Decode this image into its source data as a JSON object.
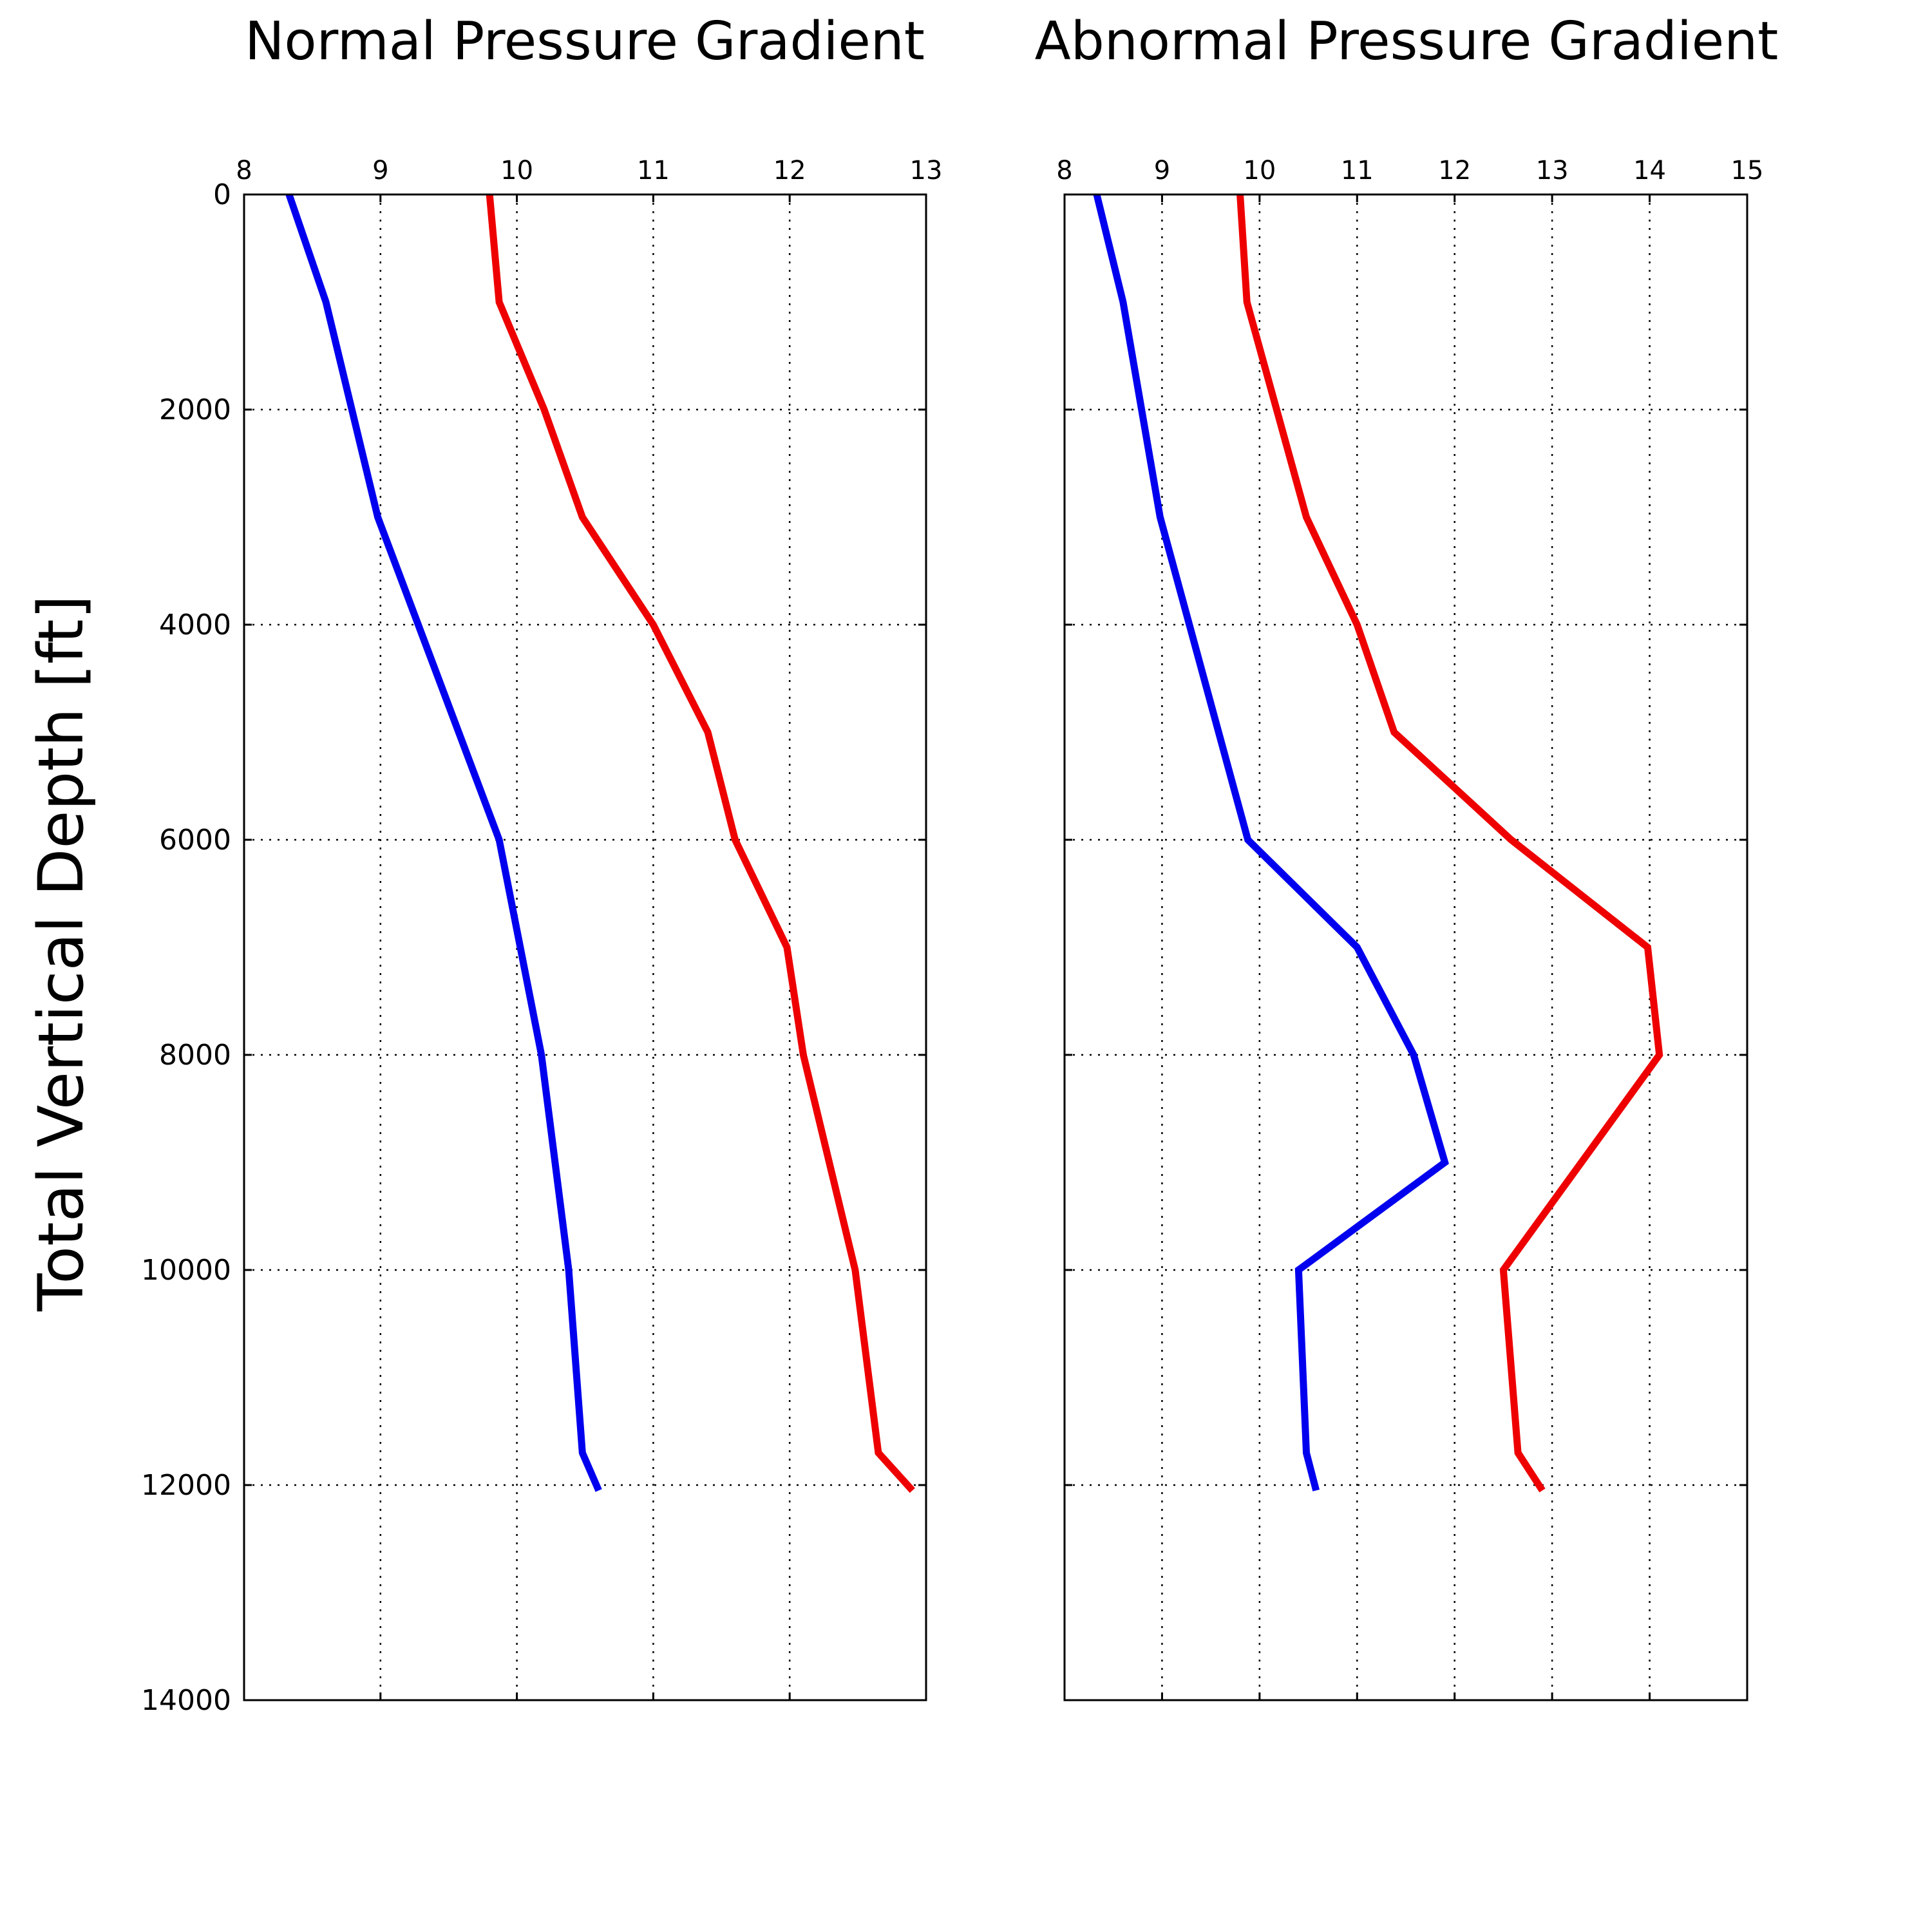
{
  "ylabel": "Total Vertical Depth [ft]",
  "colors": {
    "blue_series": "#0000ee",
    "red_series": "#ee0000"
  },
  "chart_data": [
    {
      "type": "line",
      "title": "Normal Pressure Gradient",
      "xlabel": "",
      "ylabel": "Total Vertical Depth [ft]",
      "xlim": [
        8,
        13
      ],
      "ylim": [
        0,
        14000
      ],
      "y_inverted": true,
      "x_axis_position": "top",
      "grid": true,
      "xticks": [
        "8",
        "9",
        "10",
        "11",
        "12",
        "13"
      ],
      "yticks": [
        "0",
        "2000",
        "4000",
        "6000",
        "8000",
        "10000",
        "12000",
        "14000"
      ],
      "series": [
        {
          "color": "blue",
          "x": [
            8.33,
            8.6,
            8.98,
            9.87,
            10.18,
            10.38,
            10.48,
            10.6
          ],
          "y": [
            0,
            1000,
            3000,
            6000,
            8000,
            10000,
            11700,
            12050
          ]
        },
        {
          "color": "red",
          "x": [
            9.8,
            9.87,
            10.2,
            10.48,
            11.0,
            11.4,
            11.6,
            11.98,
            12.1,
            12.48,
            12.65,
            12.9
          ],
          "y": [
            0,
            1000,
            2000,
            3000,
            4000,
            5000,
            6000,
            7000,
            8000,
            10000,
            11700,
            12050
          ]
        }
      ]
    },
    {
      "type": "line",
      "title": "Abnormal Pressure Gradient",
      "xlabel": "",
      "ylabel": "",
      "xlim": [
        8,
        15
      ],
      "ylim": [
        0,
        14000
      ],
      "y_inverted": true,
      "x_axis_position": "top",
      "grid": true,
      "xticks": [
        "8",
        "9",
        "10",
        "11",
        "12",
        "13",
        "14",
        "15"
      ],
      "yticks": [],
      "series": [
        {
          "color": "blue",
          "x": [
            8.33,
            8.6,
            8.98,
            9.88,
            11.0,
            11.58,
            11.9,
            10.4,
            10.48,
            10.58
          ],
          "y": [
            0,
            1000,
            3000,
            6000,
            7000,
            8000,
            9000,
            10000,
            11700,
            12050
          ]
        },
        {
          "color": "red",
          "x": [
            9.8,
            9.87,
            10.48,
            11.0,
            11.38,
            12.58,
            13.98,
            14.1,
            12.5,
            12.65,
            12.9
          ],
          "y": [
            0,
            1000,
            3000,
            4000,
            5000,
            6000,
            7000,
            8000,
            10000,
            11700,
            12050
          ]
        }
      ]
    }
  ]
}
